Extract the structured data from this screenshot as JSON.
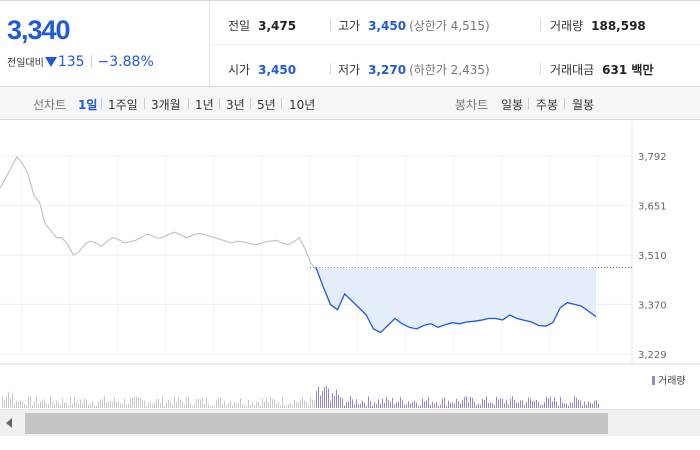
{
  "quote": {
    "price": "3,340",
    "change_label": "전일대비",
    "change_amount": "135",
    "change_percent": "−3.88%",
    "stats": {
      "prev_close": {
        "label": "전일",
        "value": "3,475"
      },
      "high": {
        "label": "고가",
        "value": "3,450",
        "sub": "(상한가 4,515)"
      },
      "volume": {
        "label": "거래량",
        "value": "188,598"
      },
      "open": {
        "label": "시가",
        "value": "3,450"
      },
      "low": {
        "label": "저가",
        "value": "3,270",
        "sub": "(하한가 2,435)"
      },
      "trade_value": {
        "label": "거래대금",
        "value": "631 백만"
      }
    }
  },
  "toolbar": {
    "line_label": "선차트",
    "ranges": [
      "1일",
      "1주일",
      "3개월",
      "1년",
      "3년",
      "5년",
      "10년"
    ],
    "active_range": "1일",
    "candle_label": "봉차트",
    "candles": [
      "일봉",
      "주봉",
      "월봉"
    ]
  },
  "colors": {
    "accent_blue": "#1f5ad8",
    "line_gray": "#c4c4c4",
    "fill_blue": "#e4edfa",
    "volume_purple": "#9a84cc"
  },
  "chart_data": {
    "type": "line",
    "y_ticks": [
      3792,
      3651,
      3510,
      3370,
      3229
    ],
    "ylim": [
      3229,
      3792
    ],
    "reference_value": 3475,
    "grid": true,
    "series": [
      {
        "values": [
          3700,
          3730,
          3760,
          3790,
          3770,
          3740,
          3680,
          3660,
          3600,
          3580,
          3560,
          3560,
          3540,
          3510,
          3520,
          3540,
          3550,
          3545,
          3535,
          3550,
          3560,
          3555,
          3545,
          3548,
          3552,
          3560,
          3570,
          3565,
          3558,
          3562,
          3570,
          3575,
          3568,
          3560,
          3565,
          3572,
          3570,
          3565,
          3560,
          3555,
          3550,
          3545,
          3550,
          3548,
          3545,
          3540,
          3542,
          3548,
          3550,
          3552,
          3545,
          3540,
          3546,
          3560,
          3530,
          3490,
          3470
        ],
        "style": "gray"
      },
      {
        "values": [
          3475,
          3420,
          3370,
          3355,
          3400,
          3380,
          3360,
          3340,
          3300,
          3290,
          3310,
          3330,
          3315,
          3305,
          3300,
          3310,
          3315,
          3305,
          3312,
          3318,
          3315,
          3320,
          3322,
          3325,
          3330,
          3330,
          3326,
          3340,
          3330,
          3325,
          3320,
          3310,
          3308,
          3318,
          3360,
          3375,
          3370,
          3365,
          3350,
          3335
        ]
      }
    ],
    "volume_label": "거래량"
  }
}
